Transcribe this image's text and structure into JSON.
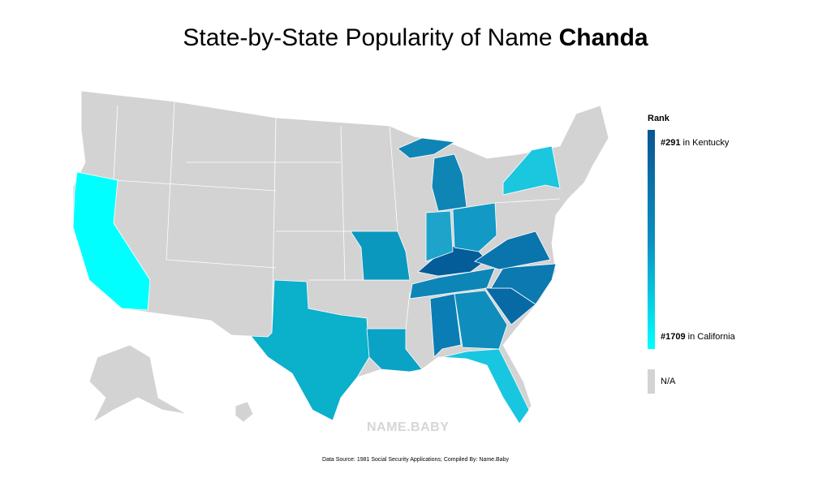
{
  "header": {
    "title": "State-by-State Popularity of Name",
    "name": "Chanda"
  },
  "legend": {
    "title": "Rank",
    "top": {
      "rank": "#291",
      "label": "in Kentucky"
    },
    "bottom": {
      "rank": "#1709",
      "label": "in California"
    },
    "na": "N/A"
  },
  "watermark": "NAME.BABY",
  "footer": "Data Source: 1981 Social Security Applications; Compiled By: Name.Baby"
}
